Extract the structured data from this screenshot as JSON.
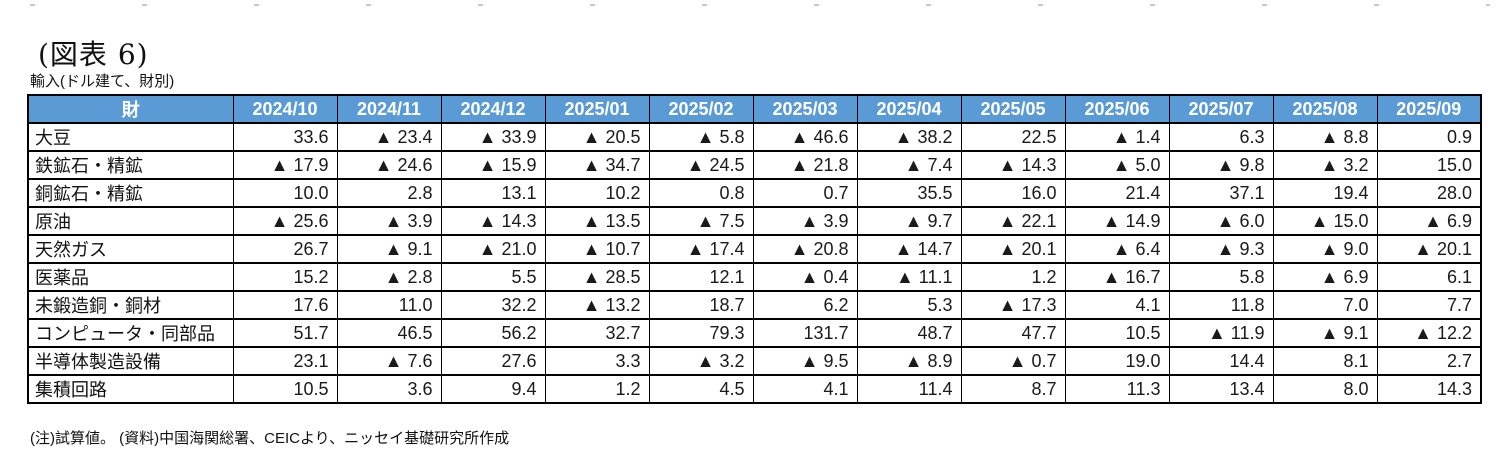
{
  "figure": {
    "title": "(図表 6)",
    "subtitle": "輸入(ドル建て、財別)",
    "note": "(注)試算値。 (資料)中国海関総署、CEICより、ニッセイ基礎研究所作成"
  },
  "colors": {
    "header_bg": "#5B9BD5",
    "header_text": "#FFFFFF",
    "border": "#000000",
    "negative_marker": "#000000"
  },
  "table": {
    "header": [
      "財",
      "2024/10",
      "2024/11",
      "2024/12",
      "2025/01",
      "2025/02",
      "2025/03",
      "2025/04",
      "2025/05",
      "2025/06",
      "2025/07",
      "2025/08",
      "2025/09"
    ],
    "rows": [
      {
        "label": "大豆",
        "cells": [
          "33.6",
          "▲ 23.4",
          "▲ 33.9",
          "▲ 20.5",
          "▲ 5.8",
          "▲ 46.6",
          "▲ 38.2",
          "22.5",
          "▲ 1.4",
          "6.3",
          "▲ 8.8",
          "0.9"
        ]
      },
      {
        "label": "鉄鉱石・精鉱",
        "cells": [
          "▲ 17.9",
          "▲ 24.6",
          "▲ 15.9",
          "▲ 34.7",
          "▲ 24.5",
          "▲ 21.8",
          "▲ 7.4",
          "▲ 14.3",
          "▲ 5.0",
          "▲ 9.8",
          "▲ 3.2",
          "15.0"
        ]
      },
      {
        "label": "銅鉱石・精鉱",
        "cells": [
          "10.0",
          "2.8",
          "13.1",
          "10.2",
          "0.8",
          "0.7",
          "35.5",
          "16.0",
          "21.4",
          "37.1",
          "19.4",
          "28.0"
        ]
      },
      {
        "label": "原油",
        "cells": [
          "▲ 25.6",
          "▲ 3.9",
          "▲ 14.3",
          "▲ 13.5",
          "▲ 7.5",
          "▲ 3.9",
          "▲ 9.7",
          "▲ 22.1",
          "▲ 14.9",
          "▲ 6.0",
          "▲ 15.0",
          "▲ 6.9"
        ]
      },
      {
        "label": "天然ガス",
        "cells": [
          "26.7",
          "▲ 9.1",
          "▲ 21.0",
          "▲ 10.7",
          "▲ 17.4",
          "▲ 20.8",
          "▲ 14.7",
          "▲ 20.1",
          "▲ 6.4",
          "▲ 9.3",
          "▲ 9.0",
          "▲ 20.1"
        ]
      },
      {
        "label": "医薬品",
        "cells": [
          "15.2",
          "▲ 2.8",
          "5.5",
          "▲ 28.5",
          "12.1",
          "▲ 0.4",
          "▲ 11.1",
          "1.2",
          "▲ 16.7",
          "5.8",
          "▲ 6.9",
          "6.1"
        ]
      },
      {
        "label": "未鍛造銅・銅材",
        "cells": [
          "17.6",
          "11.0",
          "32.2",
          "▲ 13.2",
          "18.7",
          "6.2",
          "5.3",
          "▲ 17.3",
          "4.1",
          "11.8",
          "7.0",
          "7.7"
        ]
      },
      {
        "label": "コンピュータ・同部品",
        "cells": [
          "51.7",
          "46.5",
          "56.2",
          "32.7",
          "79.3",
          "131.7",
          "48.7",
          "47.7",
          "10.5",
          "▲ 11.9",
          "▲ 9.1",
          "▲ 12.2"
        ]
      },
      {
        "label": "半導体製造設備",
        "cells": [
          "23.1",
          "▲ 7.6",
          "27.6",
          "3.3",
          "▲ 3.2",
          "▲ 9.5",
          "▲ 8.9",
          "▲ 0.7",
          "19.0",
          "14.4",
          "8.1",
          "2.7"
        ]
      },
      {
        "label": "集積回路",
        "cells": [
          "10.5",
          "3.6",
          "9.4",
          "1.2",
          "4.5",
          "4.1",
          "11.4",
          "8.7",
          "11.3",
          "13.4",
          "8.0",
          "14.3"
        ]
      }
    ]
  },
  "chart_data": {
    "type": "table",
    "title": "輸入(ドル建て、財別)",
    "figure_label": "(図表 6)",
    "categories": [
      "2024/10",
      "2024/11",
      "2024/12",
      "2025/01",
      "2025/02",
      "2025/03",
      "2025/04",
      "2025/05",
      "2025/06",
      "2025/07",
      "2025/08",
      "2025/09"
    ],
    "category_column_header": "財",
    "negative_notation": "▲ prefix denotes negative value",
    "series": [
      {
        "name": "大豆",
        "values": [
          33.6,
          -23.4,
          -33.9,
          -20.5,
          -5.8,
          -46.6,
          -38.2,
          22.5,
          -1.4,
          6.3,
          -8.8,
          0.9
        ]
      },
      {
        "name": "鉄鉱石・精鉱",
        "values": [
          -17.9,
          -24.6,
          -15.9,
          -34.7,
          -24.5,
          -21.8,
          -7.4,
          -14.3,
          -5.0,
          -9.8,
          -3.2,
          15.0
        ]
      },
      {
        "name": "銅鉱石・精鉱",
        "values": [
          10.0,
          2.8,
          13.1,
          10.2,
          0.8,
          0.7,
          35.5,
          16.0,
          21.4,
          37.1,
          19.4,
          28.0
        ]
      },
      {
        "name": "原油",
        "values": [
          -25.6,
          -3.9,
          -14.3,
          -13.5,
          -7.5,
          -3.9,
          -9.7,
          -22.1,
          -14.9,
          -6.0,
          -15.0,
          -6.9
        ]
      },
      {
        "name": "天然ガス",
        "values": [
          26.7,
          -9.1,
          -21.0,
          -10.7,
          -17.4,
          -20.8,
          -14.7,
          -20.1,
          -6.4,
          -9.3,
          -9.0,
          -20.1
        ]
      },
      {
        "name": "医薬品",
        "values": [
          15.2,
          -2.8,
          5.5,
          -28.5,
          12.1,
          -0.4,
          -11.1,
          1.2,
          -16.7,
          5.8,
          -6.9,
          6.1
        ]
      },
      {
        "name": "未鍛造銅・銅材",
        "values": [
          17.6,
          11.0,
          32.2,
          -13.2,
          18.7,
          6.2,
          5.3,
          -17.3,
          4.1,
          11.8,
          7.0,
          7.7
        ]
      },
      {
        "name": "コンピュータ・同部品",
        "values": [
          51.7,
          46.5,
          56.2,
          32.7,
          79.3,
          131.7,
          48.7,
          47.7,
          10.5,
          -11.9,
          -9.1,
          -12.2
        ]
      },
      {
        "name": "半導体製造設備",
        "values": [
          23.1,
          -7.6,
          27.6,
          3.3,
          -3.2,
          -9.5,
          -8.9,
          -0.7,
          19.0,
          14.4,
          8.1,
          2.7
        ]
      },
      {
        "name": "集積回路",
        "values": [
          10.5,
          3.6,
          9.4,
          1.2,
          4.5,
          4.1,
          11.4,
          8.7,
          11.3,
          13.4,
          8.0,
          14.3
        ]
      }
    ],
    "source_note": "(注)試算値。 (資料)中国海関総署、CEICより、ニッセイ基礎研究所作成"
  }
}
